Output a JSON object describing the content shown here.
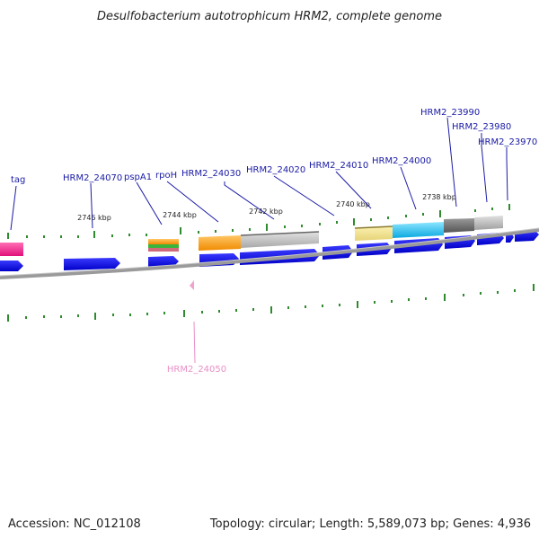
{
  "title": "Desulfobacterium autotrophicum HRM2, complete genome",
  "footer": {
    "accession": "Accession: NC_012108",
    "summary": "Topology: circular; Length: 5,589,073 bp; Genes: 4,936"
  },
  "colors": {
    "forward_gene": "#0000ee",
    "label_blue": "#1a1aa6",
    "label_pink": "#e98fc7",
    "tick_green": "#2e8b2e",
    "backbone": "#8a8a8a"
  },
  "ticks": {
    "2746": "2746 kbp",
    "2744": "2744 kbp",
    "2742": "2742 kbp",
    "2740": "2740 kbp",
    "2738": "2738 kbp"
  },
  "genes": {
    "tag": "tag",
    "hrm2_24070": "HRM2_24070",
    "pspa1": "pspA1",
    "rpoh": "rpoH",
    "hrm2_24030": "HRM2_24030",
    "hrm2_24020": "HRM2_24020",
    "hrm2_24010": "HRM2_24010",
    "hrm2_24000": "HRM2_24000",
    "hrm2_23990": "HRM2_23990",
    "hrm2_23980": "HRM2_23980",
    "hrm2_23970": "HRM2_23970",
    "hrm2_24050": "HRM2_24050"
  }
}
